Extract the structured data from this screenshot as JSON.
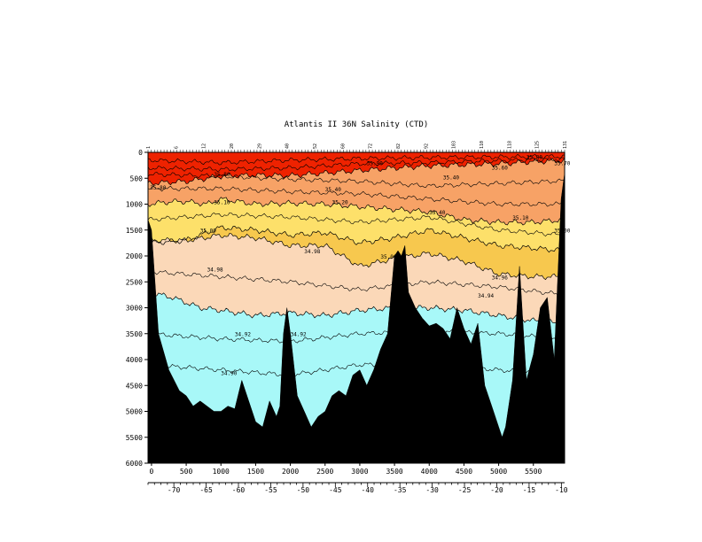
{
  "chart_data": {
    "type": "heatmap",
    "title": "Atlantis II  36N Salinity (CTD)",
    "xlabel": "",
    "ylabel": "",
    "x_distance_ticks": [
      0,
      500,
      1000,
      1500,
      2000,
      2500,
      3000,
      3500,
      4000,
      4500,
      5000,
      5500
    ],
    "xlim": [
      -50,
      5950
    ],
    "y_depth_ticks": [
      0,
      500,
      1000,
      1500,
      2000,
      2500,
      3000,
      3500,
      4000,
      4500,
      5000,
      5500,
      6000
    ],
    "ylim": [
      0,
      6000
    ],
    "y_inverted": true,
    "longitude_ticks": [
      -70,
      -65,
      -60,
      -55,
      -50,
      -45,
      -40,
      -35,
      -30,
      -25,
      -20,
      -15,
      -10
    ],
    "longitude_range": [
      -74,
      -9.5
    ],
    "station_labels": [
      "1",
      "6",
      "12",
      "20",
      "29",
      "40",
      "52",
      "60",
      "72",
      "82",
      "92",
      "103",
      "110",
      "118",
      "125",
      "131"
    ],
    "bands": [
      {
        "range": "> 35.8",
        "color": "#ee2200"
      },
      {
        "range": "35.6-35.8",
        "color": "#f26a2a"
      },
      {
        "range": "35.4-35.6",
        "color": "#f7a266"
      },
      {
        "range": "35.0-35.4",
        "color": "#fde06a"
      },
      {
        "range": "34.94-35.0",
        "color": "#f7c84e"
      },
      {
        "range": "34.92-34.94",
        "color": "#fbd8b8"
      },
      {
        "range": "< 34.92",
        "color": "#a8f8f8"
      }
    ],
    "contour_labels": [
      "35.90",
      "35.80",
      "35.70",
      "35.60",
      "35.40",
      "35.20",
      "35.10",
      "35.00",
      "34.98",
      "34.96",
      "34.94",
      "34.92",
      "34.90"
    ],
    "upper_band_boundaries": [
      {
        "band": "35.4-35.6",
        "x": [
          -50,
          500,
          1000,
          1500,
          2000,
          2500,
          3000,
          3500,
          4000,
          4500,
          5000,
          5500,
          5950
        ],
        "depth": [
          600,
          560,
          460,
          440,
          450,
          400,
          350,
          300,
          260,
          240,
          220,
          180,
          160
        ]
      },
      {
        "band": "35.0-35.4",
        "x": [
          -50,
          300,
          500,
          800,
          1000,
          1500,
          2000,
          2500,
          3000,
          3500,
          4000,
          4500,
          5000,
          5500,
          5950
        ],
        "depth": [
          1000,
          950,
          950,
          1000,
          900,
          1000,
          980,
          1000,
          1050,
          1100,
          1150,
          1300,
          1350,
          1350,
          1300
        ]
      },
      {
        "band": "34.94-35.0",
        "x": [
          -50,
          500,
          1000,
          1500,
          2000,
          2500,
          3000,
          3500,
          4000,
          4500,
          5000,
          5500,
          5950
        ],
        "depth": [
          1750,
          1700,
          1450,
          1500,
          1600,
          1550,
          1750,
          1650,
          1500,
          1650,
          1800,
          1850,
          1900
        ]
      },
      {
        "band": "34.92-34.94",
        "x": [
          -50,
          500,
          1000,
          1500,
          2000,
          2500,
          3000,
          3500,
          4000,
          4500,
          5000,
          5500,
          5950
        ],
        "depth": [
          1700,
          1700,
          1600,
          1650,
          1800,
          1800,
          2200,
          2050,
          1950,
          2100,
          2350,
          2400,
          2400
        ]
      },
      {
        "band": "< 34.92",
        "x": [
          -50,
          300,
          700,
          1000,
          1500,
          2000,
          2500,
          3000,
          3500,
          4000,
          4500,
          5000,
          5500,
          5950
        ],
        "depth": [
          2700,
          2800,
          3000,
          3050,
          3150,
          3100,
          3150,
          3050,
          3000,
          3000,
          3050,
          3150,
          3250,
          3300
        ]
      }
    ],
    "bottom_profile": {
      "x": [
        -50,
        0,
        100,
        250,
        400,
        500,
        600,
        700,
        800,
        900,
        1000,
        1100,
        1200,
        1300,
        1400,
        1500,
        1600,
        1700,
        1800,
        1850,
        1900,
        1950,
        2000,
        2100,
        2200,
        2300,
        2400,
        2500,
        2600,
        2700,
        2800,
        2900,
        3000,
        3100,
        3200,
        3300,
        3400,
        3500,
        3550,
        3600,
        3650,
        3700,
        3800,
        3900,
        4000,
        4100,
        4200,
        4300,
        4400,
        4500,
        4600,
        4700,
        4800,
        4900,
        5000,
        5050,
        5100,
        5200,
        5300,
        5400,
        5500,
        5600,
        5700,
        5800,
        5900,
        5950
      ],
      "depth": [
        1300,
        1500,
        3500,
        4200,
        4600,
        4700,
        4900,
        4800,
        4900,
        5000,
        5000,
        4900,
        4950,
        4400,
        4800,
        5200,
        5300,
        4800,
        5100,
        4900,
        3500,
        3000,
        3500,
        4700,
        5000,
        5300,
        5100,
        5000,
        4700,
        4600,
        4700,
        4300,
        4200,
        4500,
        4200,
        3800,
        3500,
        2000,
        1900,
        2000,
        1800,
        2700,
        3000,
        3200,
        3350,
        3300,
        3400,
        3600,
        3000,
        3400,
        3700,
        3300,
        4500,
        4900,
        5300,
        5500,
        5300,
        4400,
        2200,
        4400,
        3900,
        3000,
        2800,
        4000,
        900,
        400
      ]
    }
  }
}
